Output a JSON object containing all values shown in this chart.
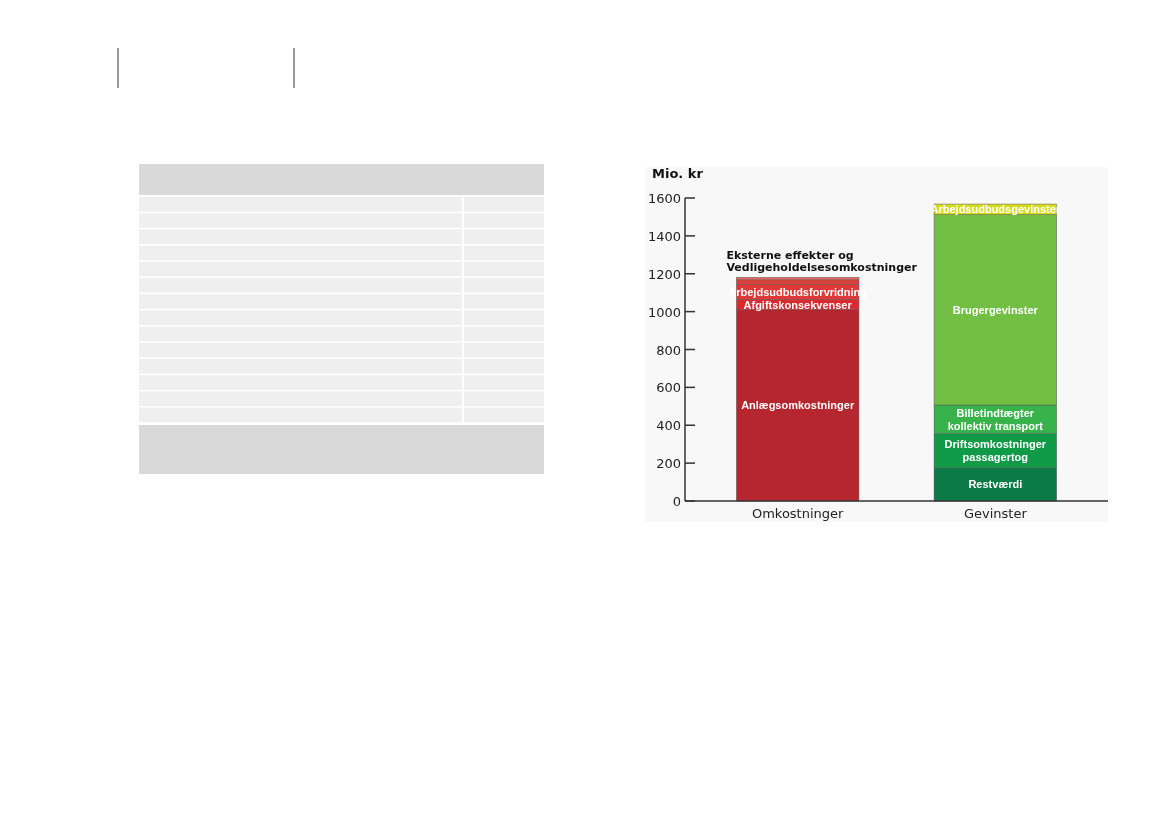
{
  "chart_data": {
    "type": "bar",
    "stacked": true,
    "ylabel": "Mio. kr",
    "categories": [
      "Omkostninger",
      "Gevinster"
    ],
    "ylim": [
      0,
      1600
    ],
    "yticks": [
      0,
      200,
      400,
      600,
      800,
      1000,
      1200,
      1400,
      1600
    ],
    "grid": false,
    "series": [
      {
        "name": "Anlægsomkostninger",
        "color": "#b5262e",
        "values": [
          1010,
          null
        ]
      },
      {
        "name": "Afgiftskonsekvenser",
        "color": "#d92b2f",
        "values": [
          53,
          null
        ]
      },
      {
        "name": "Arbejdsudbudsforvridning",
        "color": "#e03838",
        "values": [
          79,
          null
        ]
      },
      {
        "color": "#d9403a",
        "values": [
          26,
          null
        ]
      },
      {
        "color": "#e8665a",
        "values": [
          13,
          null
        ]
      },
      {
        "name": "Restværdi",
        "color": "#0b7a46",
        "values": [
          null,
          176
        ]
      },
      {
        "name": "Driftsomkostninger passagertog",
        "color": "#0f9a48",
        "values": [
          null,
          180
        ]
      },
      {
        "name": "Billetindtægter kollektiv transport",
        "color": "#38b24b",
        "values": [
          null,
          151
        ]
      },
      {
        "name": "Brugergevinster",
        "color": "#72bf44",
        "values": [
          null,
          1005
        ]
      },
      {
        "name": "Arbejdsudbudsgevinster",
        "color": "#d6dc1c",
        "values": [
          null,
          56
        ]
      }
    ],
    "annotations": [
      {
        "text": "Eksterne effekter og\nVedligeholdelsesomkostninger",
        "x": "Omkostninger",
        "y": 1181
      }
    ]
  }
}
